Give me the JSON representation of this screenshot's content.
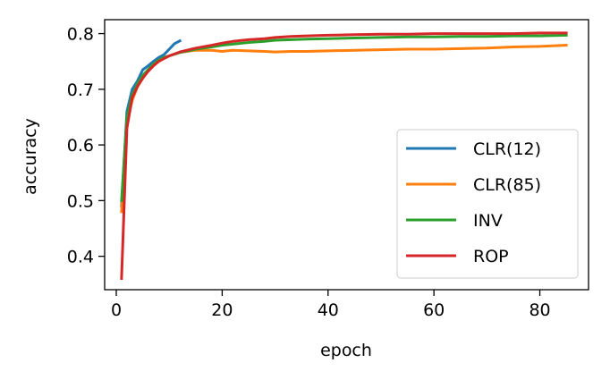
{
  "chart_data": {
    "type": "line",
    "title": "",
    "xlabel": "epoch",
    "ylabel": "accuracy",
    "xlim": [
      -2.2,
      89.2
    ],
    "ylim": [
      0.34,
      0.825
    ],
    "xticks": [
      0,
      20,
      40,
      60,
      80
    ],
    "yticks": [
      0.4,
      0.5,
      0.6,
      0.7,
      0.8
    ],
    "xtick_labels": [
      "0",
      "20",
      "40",
      "60",
      "80"
    ],
    "ytick_labels": [
      "0.4",
      "0.5",
      "0.6",
      "0.7",
      "0.8"
    ],
    "grid": false,
    "legend_position": "lower-right",
    "series": [
      {
        "name": "CLR(12)",
        "color": "#1f77b4",
        "x": [
          1,
          2,
          3,
          4,
          5,
          6,
          7,
          8,
          9,
          10,
          11,
          12
        ],
        "y": [
          0.49,
          0.66,
          0.7,
          0.715,
          0.735,
          0.742,
          0.75,
          0.757,
          0.762,
          0.772,
          0.782,
          0.787
        ]
      },
      {
        "name": "CLR(85)",
        "color": "#ff7f0e",
        "x": [
          1,
          2,
          3,
          4,
          5,
          6,
          7,
          8,
          9,
          10,
          12,
          15,
          18,
          20,
          22,
          25,
          28,
          30,
          33,
          36,
          40,
          45,
          50,
          55,
          60,
          65,
          70,
          75,
          80,
          85
        ],
        "y": [
          0.48,
          0.64,
          0.68,
          0.705,
          0.72,
          0.735,
          0.745,
          0.752,
          0.757,
          0.76,
          0.766,
          0.77,
          0.77,
          0.768,
          0.77,
          0.769,
          0.768,
          0.767,
          0.768,
          0.768,
          0.769,
          0.77,
          0.771,
          0.772,
          0.772,
          0.773,
          0.774,
          0.776,
          0.777,
          0.779
        ]
      },
      {
        "name": "INV",
        "color": "#2ca02c",
        "x": [
          1,
          2,
          3,
          4,
          5,
          6,
          7,
          8,
          9,
          10,
          12,
          15,
          18,
          20,
          22,
          25,
          28,
          30,
          33,
          36,
          40,
          45,
          50,
          55,
          60,
          65,
          70,
          75,
          80,
          85
        ],
        "y": [
          0.5,
          0.65,
          0.69,
          0.71,
          0.725,
          0.735,
          0.745,
          0.752,
          0.757,
          0.76,
          0.766,
          0.772,
          0.776,
          0.779,
          0.781,
          0.784,
          0.786,
          0.788,
          0.789,
          0.79,
          0.791,
          0.792,
          0.793,
          0.794,
          0.794,
          0.795,
          0.795,
          0.796,
          0.796,
          0.797
        ]
      },
      {
        "name": "ROP",
        "color": "#d62728",
        "x": [
          1,
          2,
          3,
          4,
          5,
          6,
          7,
          8,
          9,
          10,
          12,
          15,
          18,
          20,
          22,
          25,
          28,
          30,
          33,
          36,
          40,
          45,
          50,
          55,
          60,
          65,
          70,
          75,
          80,
          85
        ],
        "y": [
          0.36,
          0.63,
          0.685,
          0.705,
          0.72,
          0.732,
          0.742,
          0.75,
          0.755,
          0.76,
          0.767,
          0.774,
          0.779,
          0.783,
          0.786,
          0.789,
          0.791,
          0.793,
          0.795,
          0.796,
          0.797,
          0.798,
          0.799,
          0.799,
          0.8,
          0.8,
          0.8,
          0.8,
          0.801,
          0.801
        ]
      }
    ]
  }
}
